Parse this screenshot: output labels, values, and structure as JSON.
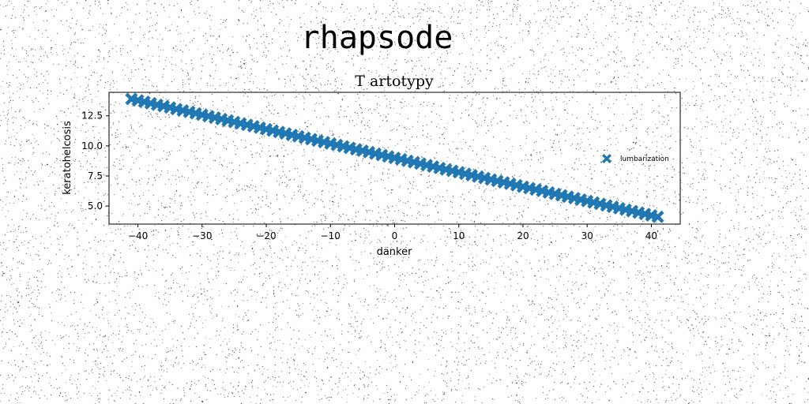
{
  "figure_title": "rhapsode",
  "chart_data": {
    "type": "scatter",
    "title": "T artotypy",
    "xlabel": "danker",
    "ylabel": "keratohelcosis",
    "xlim": [
      -44.5,
      44.5
    ],
    "ylim": [
      3.5,
      14.45
    ],
    "xticks": [
      -40,
      -30,
      -20,
      -10,
      0,
      10,
      20,
      30,
      40
    ],
    "xtick_labels": [
      "−40",
      "−30",
      "−20",
      "−10",
      "0",
      "10",
      "20",
      "30",
      "40"
    ],
    "yticks": [
      5.0,
      7.5,
      10.0,
      12.5
    ],
    "ytick_labels": [
      "5.0",
      "7.5",
      "10.0",
      "12.5"
    ],
    "grid": false,
    "legend_position": "center-right",
    "series": [
      {
        "name": "lumbarization",
        "marker": "X",
        "color": "#1f77b4",
        "x_start": -41,
        "x_end": 41,
        "x_step": 1,
        "slope": -0.1195,
        "intercept": 9.0
      }
    ]
  }
}
